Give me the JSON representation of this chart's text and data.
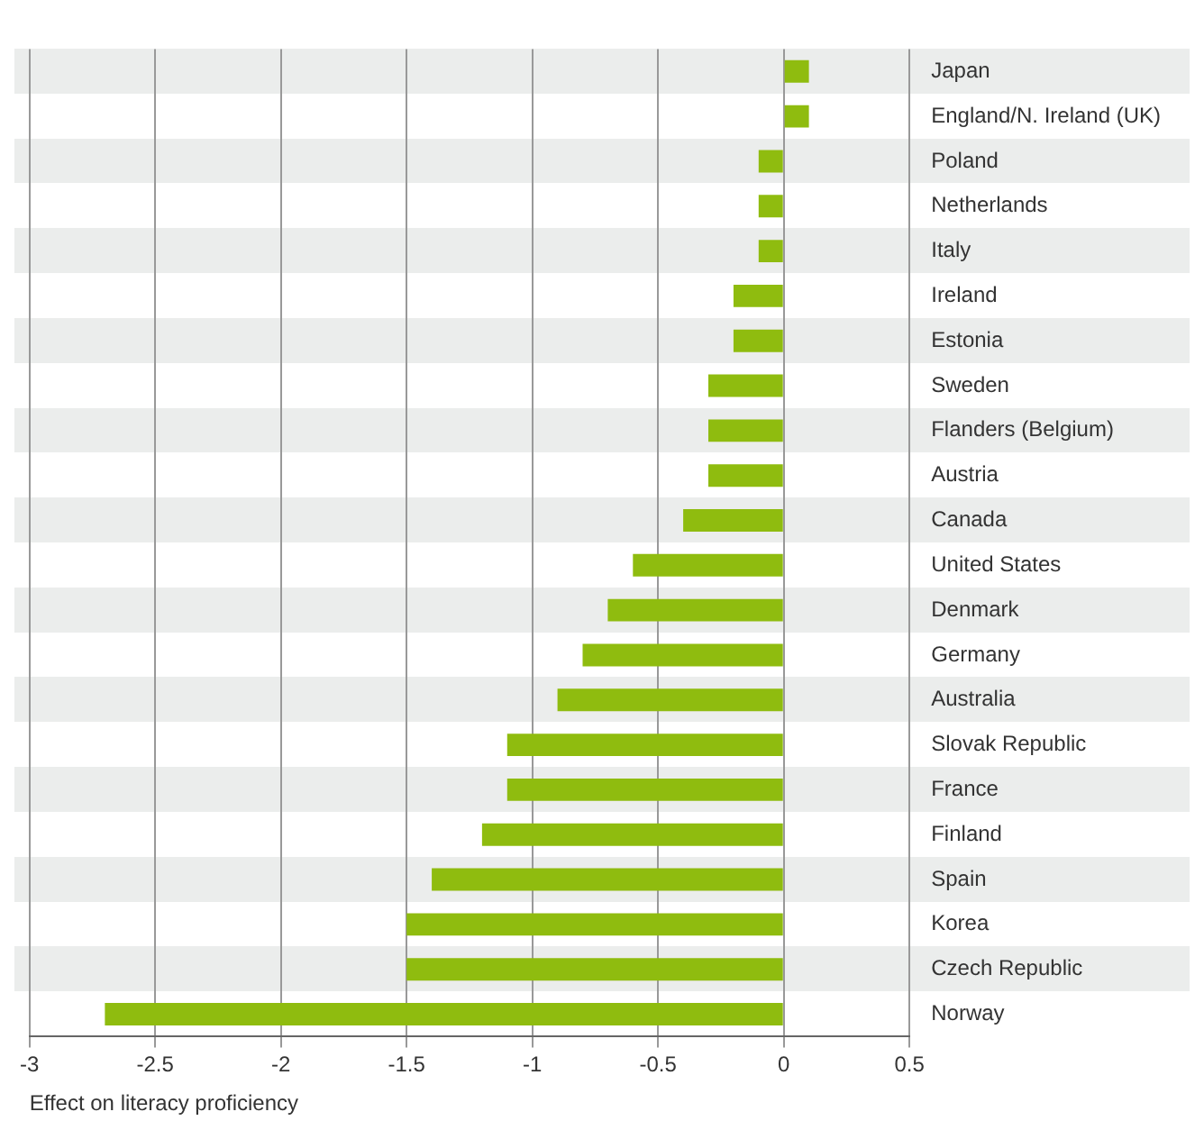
{
  "chart_data": {
    "type": "bar",
    "orientation": "horizontal",
    "xlabel": "Effect on literacy proficiency",
    "categories": [
      "Japan",
      "England/N. Ireland (UK)",
      "Poland",
      "Netherlands",
      "Italy",
      "Ireland",
      "Estonia",
      "Sweden",
      "Flanders (Belgium)",
      "Austria",
      "Canada",
      "United States",
      "Denmark",
      "Germany",
      "Australia",
      "Slovak Republic",
      "France",
      "Finland",
      "Spain",
      "Korea",
      "Czech Republic",
      "Norway"
    ],
    "values": [
      0.1,
      0.1,
      -0.1,
      -0.1,
      -0.1,
      -0.2,
      -0.2,
      -0.3,
      -0.3,
      -0.3,
      -0.4,
      -0.6,
      -0.7,
      -0.8,
      -0.9,
      -1.1,
      -1.1,
      -1.2,
      -1.4,
      -1.5,
      -1.5,
      -2.7
    ],
    "color": "#8fbc0f",
    "xlim": [
      -3,
      0.5
    ],
    "xticks": [
      -3,
      -2.5,
      -2,
      -1.5,
      -1,
      -0.5,
      0,
      0.5
    ],
    "grid": "x",
    "legend": false
  }
}
